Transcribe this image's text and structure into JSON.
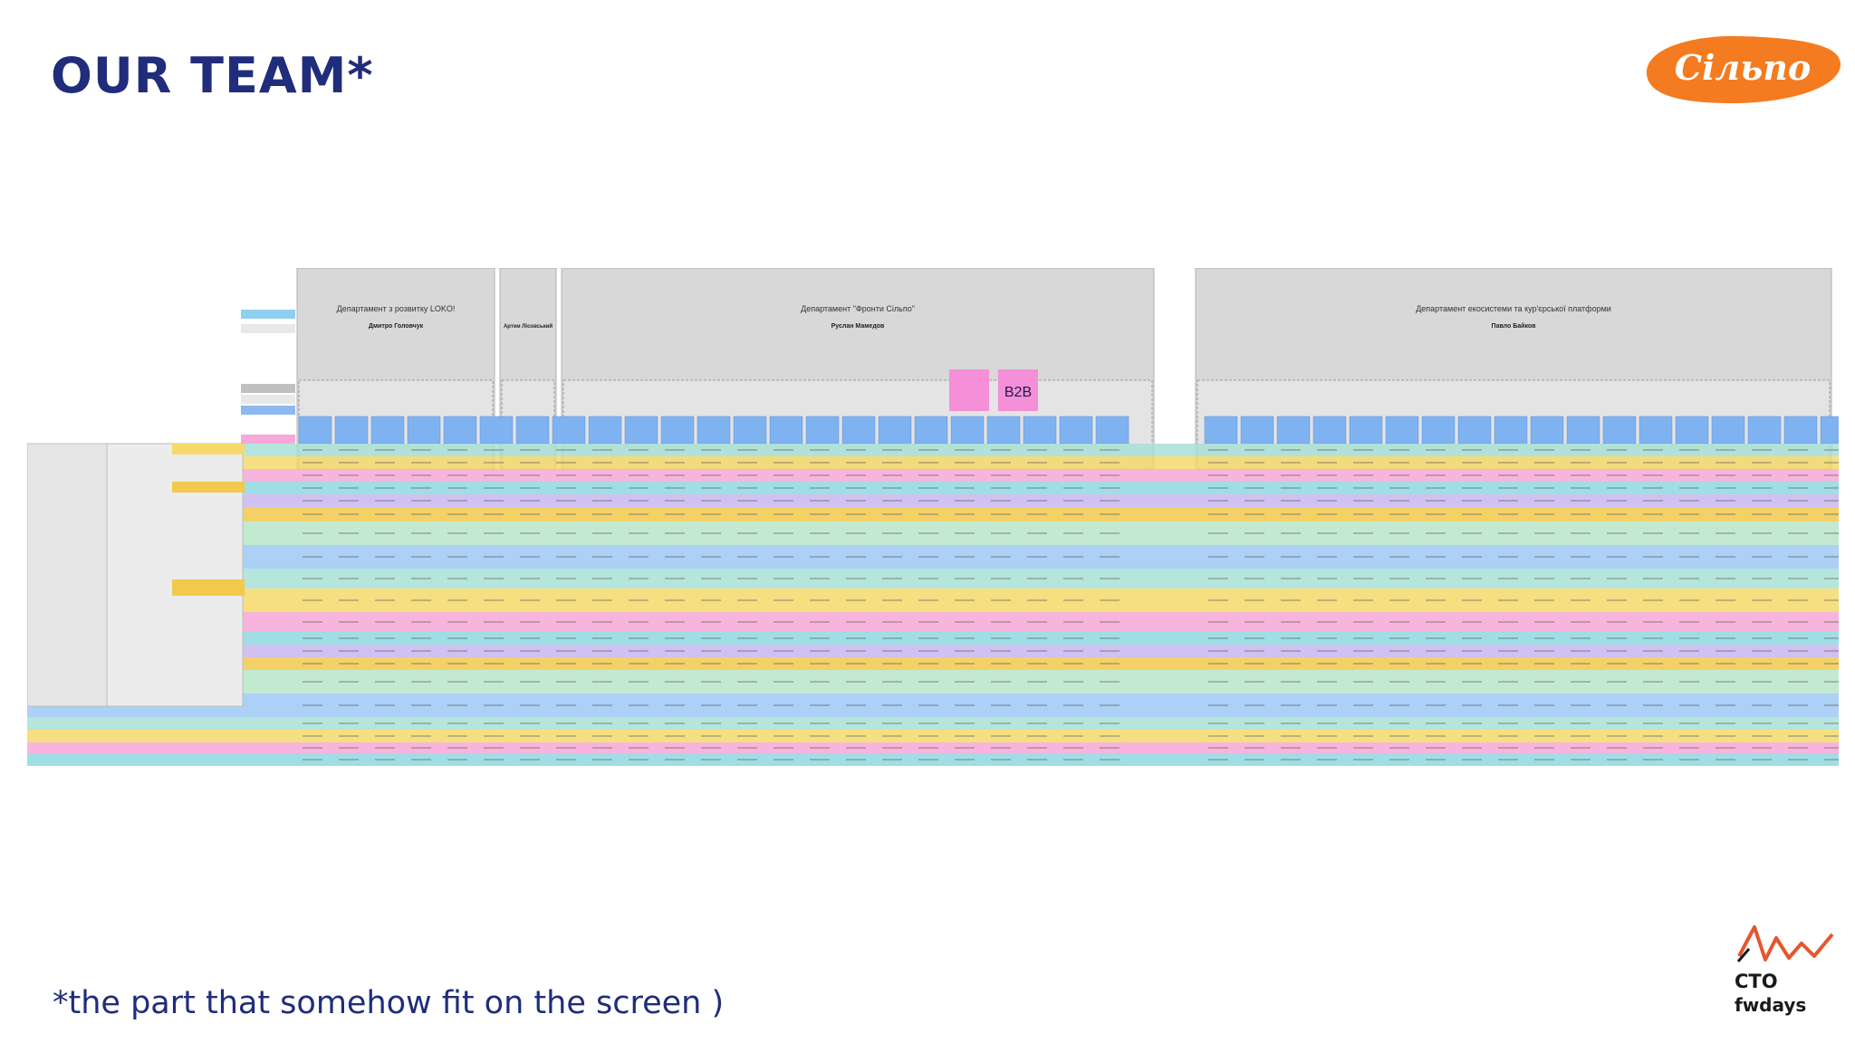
{
  "slide": {
    "title": "OUR TEAM*",
    "footnote": "*the part that somehow fit on the screen )"
  },
  "logo": {
    "text": "Сільпо",
    "color": "#f47b20"
  },
  "branding": {
    "line1": "CTO",
    "line2": "fwdays",
    "accent_color": "#e4572e"
  },
  "org_chart": {
    "departments": [
      {
        "name": "Департамент з розвитку LOKO!",
        "head": "Дмитро Головчук"
      },
      {
        "name": "",
        "head": "Артем Лісовський"
      },
      {
        "name": "Департамент \"Фронти Сільпо\"",
        "head": "Руслан Мамедов"
      },
      {
        "name": "Департамент екосистеми та кур'єрської платформи",
        "head": "Павло Байков"
      }
    ],
    "badge": "B2B",
    "row_colors": [
      "#a8e0d6",
      "#f5d96b",
      "#f6a8d8",
      "#8fd8e0",
      "#c9b6f0",
      "#f2c94c",
      "#b8e6c8",
      "#9ec8f5"
    ]
  }
}
